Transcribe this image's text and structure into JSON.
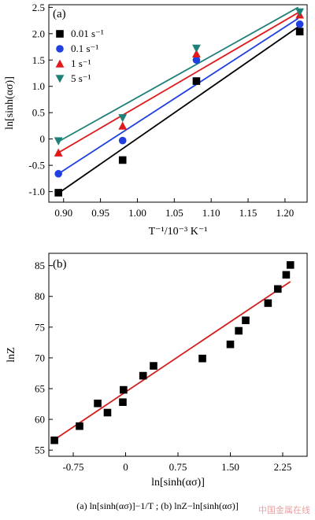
{
  "caption": "(a)   ln[sinh(ασ)]−1/T  ;  (b)  lnZ−ln[sinh(ασ)]",
  "watermark": "中国金属在线",
  "colors": {
    "black": "#000000",
    "blue": "#1f3fe0",
    "red": "#e01a1a",
    "teal": "#1f8078",
    "fit_b": "#d41f1f"
  },
  "chart_data": [
    {
      "type": "scatter",
      "panel_label": "(a)",
      "xlabel": "T⁻¹/10⁻³ K⁻¹",
      "ylabel": "ln[sinh(ασ)]",
      "xlim": [
        0.88,
        1.23
      ],
      "ylim": [
        -1.2,
        2.55
      ],
      "xticks": [
        0.9,
        0.95,
        1.0,
        1.05,
        1.1,
        1.15,
        1.2
      ],
      "xtick_labels": [
        "0.90",
        "0.95",
        "1.00",
        "1.05",
        "1.10",
        "1.15",
        "1.20"
      ],
      "yticks": [
        -1.0,
        -0.5,
        0,
        0.5,
        1.0,
        1.5,
        2.0,
        2.5
      ],
      "ytick_labels": [
        "-1.0",
        "-0.5",
        "0",
        "0.5",
        "1.0",
        "1.5",
        "2.0",
        "2.5"
      ],
      "legend_position": "upper-left",
      "series": [
        {
          "name": "0.01 s⁻¹",
          "marker": "square",
          "color": "#000000",
          "x": [
            0.893,
            0.98,
            1.08,
            1.22
          ],
          "y": [
            -1.02,
            -0.4,
            1.1,
            2.04
          ],
          "fit": {
            "x": [
              0.893,
              1.218
            ],
            "y": [
              -1.03,
              2.13
            ]
          }
        },
        {
          "name": "0.1 s⁻¹",
          "marker": "circle",
          "color": "#1f3fe0",
          "x": [
            0.893,
            0.98,
            1.08,
            1.22
          ],
          "y": [
            -0.66,
            -0.03,
            1.5,
            2.18
          ],
          "fit": {
            "x": [
              0.893,
              1.218
            ],
            "y": [
              -0.66,
              2.29
            ]
          }
        },
        {
          "name": "1 s⁻¹",
          "marker": "triangle-up",
          "color": "#e01a1a",
          "x": [
            0.893,
            0.98,
            1.08,
            1.22
          ],
          "y": [
            -0.26,
            0.25,
            1.62,
            2.36
          ],
          "fit": {
            "x": [
              0.893,
              1.218
            ],
            "y": [
              -0.26,
              2.4
            ]
          }
        },
        {
          "name": "5 s⁻¹",
          "marker": "triangle-down",
          "color": "#1f8078",
          "x": [
            0.893,
            0.98,
            1.08,
            1.22
          ],
          "y": [
            -0.04,
            0.4,
            1.72,
            2.41
          ],
          "fit": {
            "x": [
              0.893,
              1.218
            ],
            "y": [
              -0.05,
              2.5
            ]
          }
        }
      ]
    },
    {
      "type": "scatter",
      "panel_label": "(b)",
      "xlabel": "ln[sinh(ασ)]",
      "ylabel": "lnZ",
      "xlim": [
        -1.1,
        2.6
      ],
      "ylim": [
        54,
        87
      ],
      "xticks": [
        -0.75,
        0,
        0.75,
        1.5,
        2.25
      ],
      "xtick_labels": [
        "-0.75",
        "0",
        "0.75",
        "1.50",
        "2.25"
      ],
      "yticks": [
        55,
        60,
        65,
        70,
        75,
        80,
        85
      ],
      "ytick_labels": [
        "55",
        "60",
        "65",
        "70",
        "75",
        "80",
        "85"
      ],
      "series": [
        {
          "marker": "square",
          "color": "#000000",
          "x": [
            -1.02,
            -0.66,
            -0.4,
            -0.26,
            -0.04,
            -0.03,
            0.25,
            0.4,
            1.1,
            1.5,
            1.62,
            1.72,
            2.04,
            2.18,
            2.3,
            2.36
          ],
          "y": [
            56.6,
            58.9,
            62.6,
            61.1,
            62.8,
            64.8,
            67.1,
            68.7,
            69.9,
            72.2,
            74.4,
            76.1,
            78.9,
            81.2,
            83.5,
            85.1
          ]
        }
      ],
      "fit": {
        "x": [
          -1.02,
          2.36
        ],
        "y": [
          56.7,
          82.4
        ]
      }
    }
  ]
}
